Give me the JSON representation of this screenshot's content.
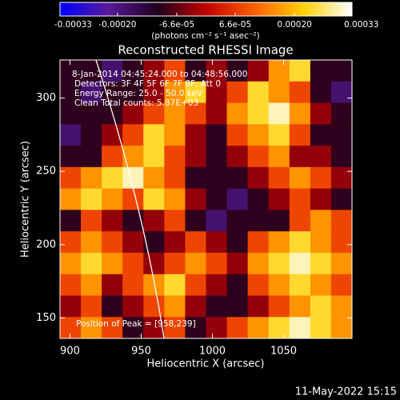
{
  "chart_data": {
    "type": "heatmap",
    "title": "Reconstructed RHESSI Image",
    "xlabel": "Heliocentric X (arcsec)",
    "ylabel": "Heliocentric Y (arcsec)",
    "xlim": [
      893,
      1098
    ],
    "ylim": [
      136,
      326
    ],
    "xticks": [
      900,
      950,
      1000,
      1050
    ],
    "yticks": [
      150,
      200,
      250,
      300
    ],
    "colorbar": {
      "label": "(photons cm⁻² s⁻¹ asec⁻²)",
      "lim": [
        -0.00033,
        0.00033
      ],
      "ticks": [
        {
          "value": -0.00033,
          "label": "-0.00033"
        },
        {
          "value": -0.0002,
          "label": "-0.00020"
        },
        {
          "value": -6.6e-05,
          "label": "-6.6e-05"
        },
        {
          "value": 6.6e-05,
          "label": "6.6e-05"
        },
        {
          "value": 0.0002,
          "label": "0.00020"
        },
        {
          "value": 0.00033,
          "label": "0.00033"
        }
      ],
      "colors": [
        "#0000ff",
        "#5a1a9a",
        "#200020",
        "#c00000",
        "#ff6000",
        "#ffd000",
        "#ffffff"
      ]
    },
    "annotations": [
      "8-Jan-2014 04:45:24.000 to 04:48:56.000",
      "Detectors: 3F 4F 5F 6F 7F 8F, Att 0",
      "Energy Range: 25.0 - 50.0 keV",
      "Clean     Total counts: 5.87E+03"
    ],
    "peak_label": "Position of Peak = [958,239]",
    "timestamp": "11-May-2022 15:15",
    "values": [
      [
        -0.0001,
        -0.0001,
        -0.00018,
        -0.0001,
        -3e-05,
        8e-05,
        -0.0001,
        -3e-05,
        -0.0001,
        -3e-05,
        0.00016,
        0.00024,
        -0.0001,
        -0.0001
      ],
      [
        -0.0001,
        -0.00018,
        -0.0001,
        -0.0001,
        -3e-05,
        0.00016,
        0.00024,
        -3e-05,
        8e-05,
        0.00024,
        0.00016,
        8e-05,
        -0.0001,
        -0.00018
      ],
      [
        -0.0001,
        -0.0001,
        -0.0001,
        -3e-05,
        8e-05,
        0.00016,
        8e-05,
        -3e-05,
        0.00016,
        0.00024,
        0.0003,
        0.00016,
        -3e-05,
        -0.0001
      ],
      [
        -0.00018,
        -0.0001,
        -3e-05,
        8e-05,
        0.00024,
        0.00016,
        -3e-05,
        -0.0001,
        8e-05,
        0.00016,
        0.00024,
        8e-05,
        -0.0001,
        -0.0001
      ],
      [
        -0.0001,
        -0.0001,
        8e-05,
        0.00016,
        0.00024,
        8e-05,
        -3e-05,
        -0.0001,
        -3e-05,
        8e-05,
        0.00016,
        -3e-05,
        -3e-05,
        -0.0001
      ],
      [
        8e-05,
        0.00016,
        0.00024,
        0.0003,
        0.00016,
        8e-05,
        -0.0001,
        -0.0001,
        -0.0001,
        -3e-05,
        8e-05,
        0.00016,
        8e-05,
        -3e-05
      ],
      [
        0.00016,
        0.00024,
        0.00016,
        8e-05,
        0.00024,
        0.00016,
        -3e-05,
        -0.0001,
        -0.00018,
        -0.0001,
        -3e-05,
        8e-05,
        -3e-05,
        -0.0001
      ],
      [
        -0.0001,
        8e-05,
        -3e-05,
        -0.0001,
        -3e-05,
        8e-05,
        -0.0001,
        -0.00018,
        -0.0001,
        -0.0001,
        -0.0001,
        8e-05,
        0.00016,
        8e-05
      ],
      [
        8e-05,
        0.00016,
        8e-05,
        -3e-05,
        -0.0001,
        -3e-05,
        8e-05,
        -3e-05,
        -0.0001,
        8e-05,
        0.00016,
        0.00024,
        0.00016,
        8e-05
      ],
      [
        0.00016,
        0.00024,
        0.00016,
        8e-05,
        -3e-05,
        8e-05,
        0.00016,
        8e-05,
        -3e-05,
        0.00016,
        0.00024,
        0.0003,
        0.00024,
        0.00016
      ],
      [
        8e-05,
        0.00016,
        -3e-05,
        8e-05,
        0.00016,
        0.00024,
        8e-05,
        -3e-05,
        -0.0001,
        8e-05,
        0.00016,
        0.00024,
        0.00016,
        8e-05
      ],
      [
        -3e-05,
        8e-05,
        -0.0001,
        -3e-05,
        8e-05,
        0.00016,
        -3e-05,
        -0.0001,
        -0.0001,
        -3e-05,
        8e-05,
        0.00016,
        0.00024,
        0.00016
      ],
      [
        8e-05,
        0.00016,
        8e-05,
        -0.0001,
        -3e-05,
        8e-05,
        -0.0001,
        -3e-05,
        8e-05,
        0.00016,
        0.00024,
        0.0003,
        0.00024,
        0.00016
      ]
    ]
  }
}
